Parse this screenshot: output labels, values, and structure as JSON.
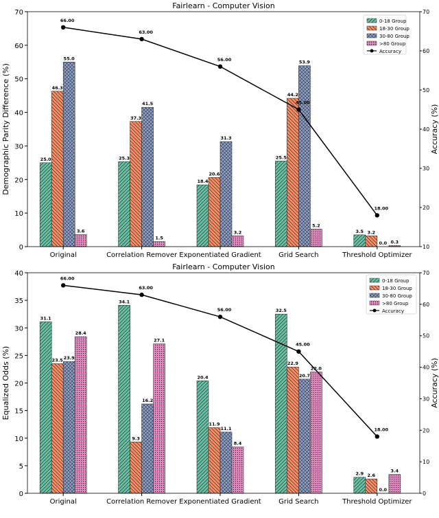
{
  "colors": {
    "0-18 Group": "#66c2a5",
    "18-30 Group": "#fc8d62",
    "30-80 Group": "#8da0cb",
    ">80 Group": "#e78ac3",
    "Accuracy": "#000000"
  },
  "chart_data": [
    {
      "type": "bar",
      "title": "Fairlearn - Computer Vision",
      "ylabel": "Demographic Parity Difference (%)",
      "y2label": "Accuracy (%)",
      "ylim": [
        0,
        70
      ],
      "y2lim": [
        10,
        70
      ],
      "yticks": [
        0,
        10,
        20,
        30,
        40,
        50,
        60,
        70
      ],
      "y2ticks": [
        10,
        20,
        30,
        40,
        50,
        60,
        70
      ],
      "grid": false,
      "legend_position": "top-right",
      "categories": [
        "Original",
        "Correlation Remover",
        "Exponentiated Gradient",
        "Grid Search",
        "Threshold Optimizer"
      ],
      "series": [
        {
          "name": "0-18 Group",
          "pattern": "diagonal-hatch",
          "values": [
            25.0,
            25.3,
            18.4,
            25.5,
            3.5
          ]
        },
        {
          "name": "18-30 Group",
          "pattern": "back-diagonal-hatch",
          "values": [
            46.3,
            37.3,
            20.6,
            44.2,
            3.2
          ]
        },
        {
          "name": "30-80 Group",
          "pattern": "cross-hatch",
          "values": [
            55.0,
            41.5,
            31.3,
            53.9,
            0.0
          ]
        },
        {
          "name": ">80 Group",
          "pattern": "dots",
          "values": [
            3.6,
            1.5,
            3.2,
            5.2,
            0.3
          ]
        }
      ],
      "line": {
        "name": "Accuracy",
        "axis": "right",
        "values": [
          66.0,
          63.0,
          56.0,
          45.0,
          18.0
        ]
      }
    },
    {
      "type": "bar",
      "title": "Fairlearn - Computer Vision",
      "ylabel": "Equalized Odds (%)",
      "y2label": "Accuracy (%)",
      "ylim": [
        0,
        40
      ],
      "y2lim": [
        0,
        70
      ],
      "yticks": [
        0,
        5,
        10,
        15,
        20,
        25,
        30,
        35,
        40
      ],
      "y2ticks": [
        0,
        10,
        20,
        30,
        40,
        50,
        60,
        70
      ],
      "grid": false,
      "legend_position": "top-right",
      "categories": [
        "Original",
        "Correlation Remover",
        "Exponentiated Gradient",
        "Grid Search",
        "Threshold Optimizer"
      ],
      "series": [
        {
          "name": "0-18 Group",
          "pattern": "diagonal-hatch",
          "values": [
            31.1,
            34.1,
            20.4,
            32.5,
            2.9
          ]
        },
        {
          "name": "18-30 Group",
          "pattern": "back-diagonal-hatch",
          "values": [
            23.5,
            9.3,
            11.9,
            22.9,
            2.6
          ]
        },
        {
          "name": "30-80 Group",
          "pattern": "cross-hatch",
          "values": [
            23.9,
            16.2,
            11.1,
            20.7,
            0.0
          ]
        },
        {
          "name": ">80 Group",
          "pattern": "dots",
          "values": [
            28.4,
            27.1,
            8.4,
            22.0,
            3.4
          ]
        }
      ],
      "line": {
        "name": "Accuracy",
        "axis": "right",
        "values": [
          66.0,
          63.0,
          56.0,
          45.0,
          18.0
        ]
      }
    }
  ]
}
